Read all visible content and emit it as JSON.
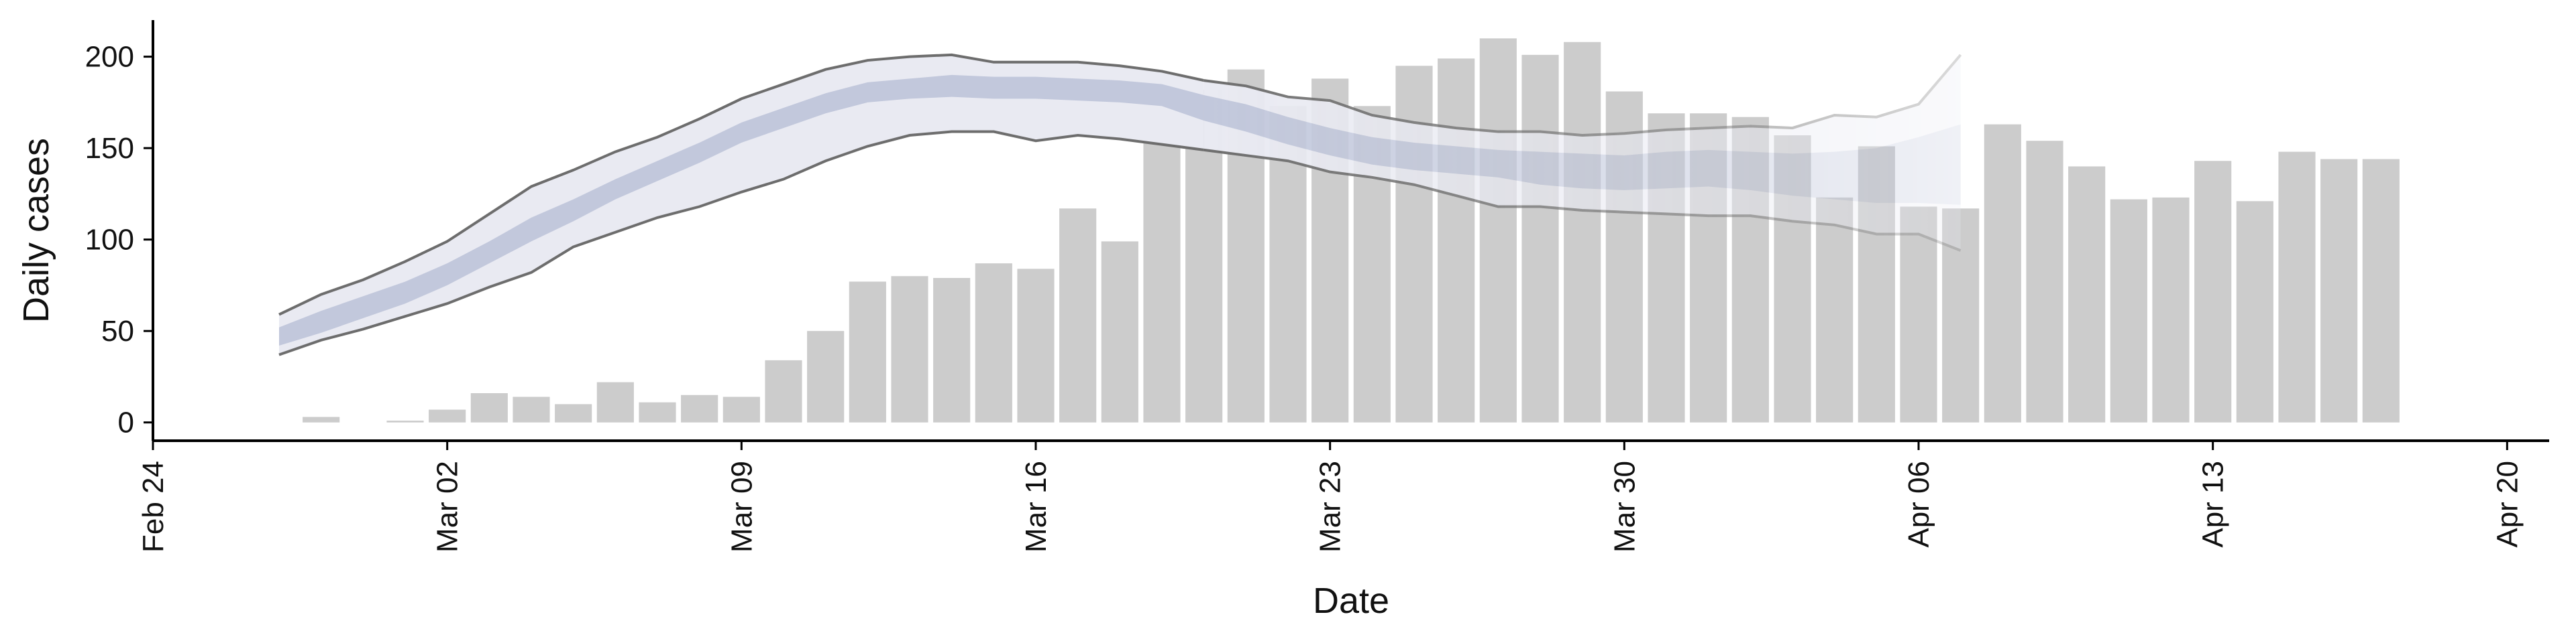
{
  "chart_data": {
    "type": "bar",
    "title": "",
    "xlabel": "Date",
    "ylabel": "Daily cases",
    "ylim": [
      -10,
      220
    ],
    "xlim": [
      "2020-02-24",
      "2020-04-21"
    ],
    "yticks": [
      0,
      50,
      100,
      150,
      200
    ],
    "xticks": [
      {
        "date": "2020-02-24",
        "label": "Feb 24"
      },
      {
        "date": "2020-03-02",
        "label": "Mar 02"
      },
      {
        "date": "2020-03-09",
        "label": "Mar 09"
      },
      {
        "date": "2020-03-16",
        "label": "Mar 16"
      },
      {
        "date": "2020-03-23",
        "label": "Mar 23"
      },
      {
        "date": "2020-03-30",
        "label": "Mar 30"
      },
      {
        "date": "2020-04-06",
        "label": "Apr 06"
      },
      {
        "date": "2020-04-13",
        "label": "Apr 13"
      },
      {
        "date": "2020-04-20",
        "label": "Apr 20"
      }
    ],
    "grid": false,
    "colors": {
      "bars": "#cccccc",
      "band": "#c2c8dc",
      "band_light": "#e9eaf2",
      "band_lines": "#6d6d6d"
    },
    "bars": {
      "start_date": "2020-02-27",
      "values": [
        0,
        3,
        0,
        1,
        7,
        16,
        14,
        10,
        22,
        11,
        15,
        14,
        34,
        50,
        77,
        80,
        79,
        87,
        84,
        117,
        99,
        185,
        182,
        193,
        173,
        188,
        173,
        195,
        199,
        210,
        201,
        208,
        181,
        169,
        169,
        167,
        157,
        123,
        151,
        118,
        117,
        163,
        154,
        140,
        122,
        123,
        143,
        121,
        148,
        144,
        144
      ]
    },
    "model_fit": {
      "start_date": "2020-02-27",
      "median": [
        47,
        55,
        63,
        71,
        81,
        93,
        106,
        116,
        127,
        137,
        147,
        158,
        166,
        174,
        180,
        182,
        184,
        183,
        183,
        182,
        181,
        179,
        172,
        166,
        159,
        153,
        148,
        145,
        143,
        141,
        139,
        137,
        136,
        137,
        138,
        137,
        135,
        134,
        133,
        134,
        135
      ],
      "inner_low": [
        42,
        49,
        57,
        65,
        75,
        87,
        99,
        110,
        122,
        132,
        142,
        153,
        161,
        169,
        175,
        177,
        178,
        177,
        177,
        176,
        175,
        173,
        165,
        159,
        152,
        146,
        141,
        138,
        136,
        134,
        130,
        128,
        127,
        128,
        129,
        127,
        124,
        122,
        120,
        120,
        119
      ],
      "inner_high": [
        52,
        61,
        69,
        77,
        87,
        99,
        112,
        122,
        133,
        143,
        153,
        164,
        172,
        180,
        186,
        188,
        190,
        189,
        189,
        188,
        187,
        185,
        179,
        174,
        167,
        161,
        156,
        153,
        151,
        149,
        148,
        147,
        146,
        148,
        149,
        148,
        147,
        148,
        150,
        156,
        163
      ],
      "outer_low": [
        37,
        45,
        51,
        58,
        65,
        74,
        82,
        96,
        104,
        112,
        118,
        126,
        133,
        143,
        151,
        157,
        159,
        159,
        154,
        157,
        155,
        152,
        149,
        146,
        143,
        137,
        134,
        130,
        124,
        118,
        118,
        116,
        115,
        114,
        113,
        113,
        110,
        108,
        103,
        103,
        94
      ],
      "outer_high": [
        59,
        70,
        78,
        88,
        99,
        114,
        129,
        138,
        148,
        156,
        166,
        177,
        185,
        193,
        198,
        200,
        201,
        197,
        197,
        197,
        195,
        192,
        187,
        184,
        178,
        176,
        168,
        164,
        161,
        159,
        159,
        157,
        158,
        160,
        161,
        162,
        161,
        168,
        167,
        174,
        201
      ],
      "fade_from_date": "2020-03-20"
    }
  }
}
